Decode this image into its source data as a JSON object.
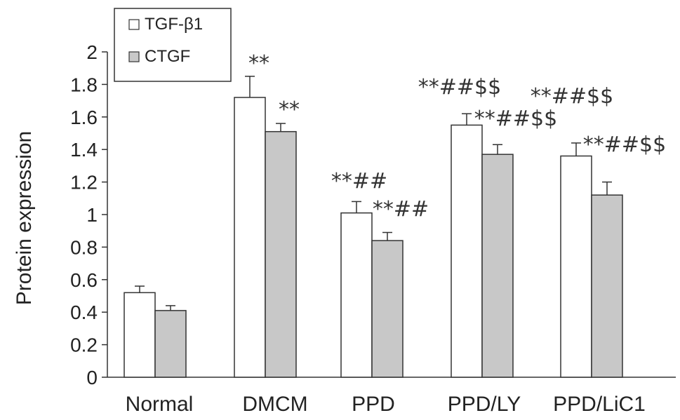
{
  "chart_data": {
    "type": "bar",
    "title": "",
    "xlabel": "",
    "ylabel": "Protein expression",
    "ylim": [
      0,
      2
    ],
    "yticks": [
      "0",
      "0.2",
      "0.4",
      "0.6",
      "0.8",
      "1",
      "1.2",
      "1.4",
      "1.6",
      "1.8",
      "2"
    ],
    "categories": [
      "Normal",
      "DMCM",
      "PPD",
      "PPD/LY",
      "PPD/LiC1"
    ],
    "series": [
      {
        "name": "TGF-β1",
        "color": "#ffffff",
        "values": [
          0.52,
          1.72,
          1.01,
          1.55,
          1.36
        ],
        "errors": [
          0.04,
          0.13,
          0.07,
          0.07,
          0.08
        ],
        "annotations": [
          "",
          "**",
          "**##",
          "**##$$",
          "**##$$"
        ]
      },
      {
        "name": "CTGF",
        "color": "#c8c8c8",
        "values": [
          0.41,
          1.51,
          0.84,
          1.37,
          1.12
        ],
        "errors": [
          0.03,
          0.05,
          0.05,
          0.06,
          0.08
        ],
        "annotations": [
          "",
          "**",
          "**##",
          "**##$$",
          "**##$$"
        ]
      }
    ],
    "legend": {
      "position": "top-left",
      "entries": [
        "TGF-β1",
        "CTGF"
      ]
    },
    "grid": false
  }
}
